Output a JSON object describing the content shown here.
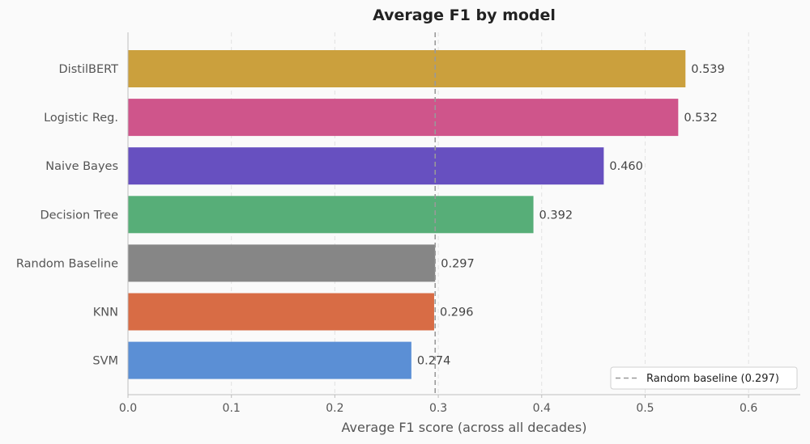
{
  "chart_data": {
    "type": "bar",
    "orientation": "horizontal",
    "title": "Average F1 by model",
    "xlabel": "Average F1 score (across all decades)",
    "ylabel": "",
    "xlim": [
      0,
      0.65
    ],
    "xticks": [
      0.0,
      0.1,
      0.2,
      0.3,
      0.4,
      0.5,
      0.6
    ],
    "xtick_labels": [
      "0.0",
      "0.1",
      "0.2",
      "0.3",
      "0.4",
      "0.5",
      "0.6"
    ],
    "grid": "x-dashed",
    "categories": [
      "DistilBERT",
      "Logistic Reg.",
      "Naive Bayes",
      "Decision Tree",
      "Random Baseline",
      "KNN",
      "SVM"
    ],
    "values": [
      0.539,
      0.532,
      0.46,
      0.392,
      0.297,
      0.296,
      0.274
    ],
    "value_labels": [
      "0.539",
      "0.532",
      "0.460",
      "0.392",
      "0.297",
      "0.296",
      "0.274"
    ],
    "colors": [
      "#cba03d",
      "#cf558b",
      "#6750c0",
      "#57ae78",
      "#868686",
      "#d86c45",
      "#5b8fd5"
    ],
    "reference_line": {
      "value": 0.297,
      "style": "dashed",
      "color": "#999999",
      "label": "Random baseline (0.297)"
    },
    "legend": {
      "position": "bottom-right",
      "entries": [
        "Random baseline (0.297)"
      ]
    }
  }
}
